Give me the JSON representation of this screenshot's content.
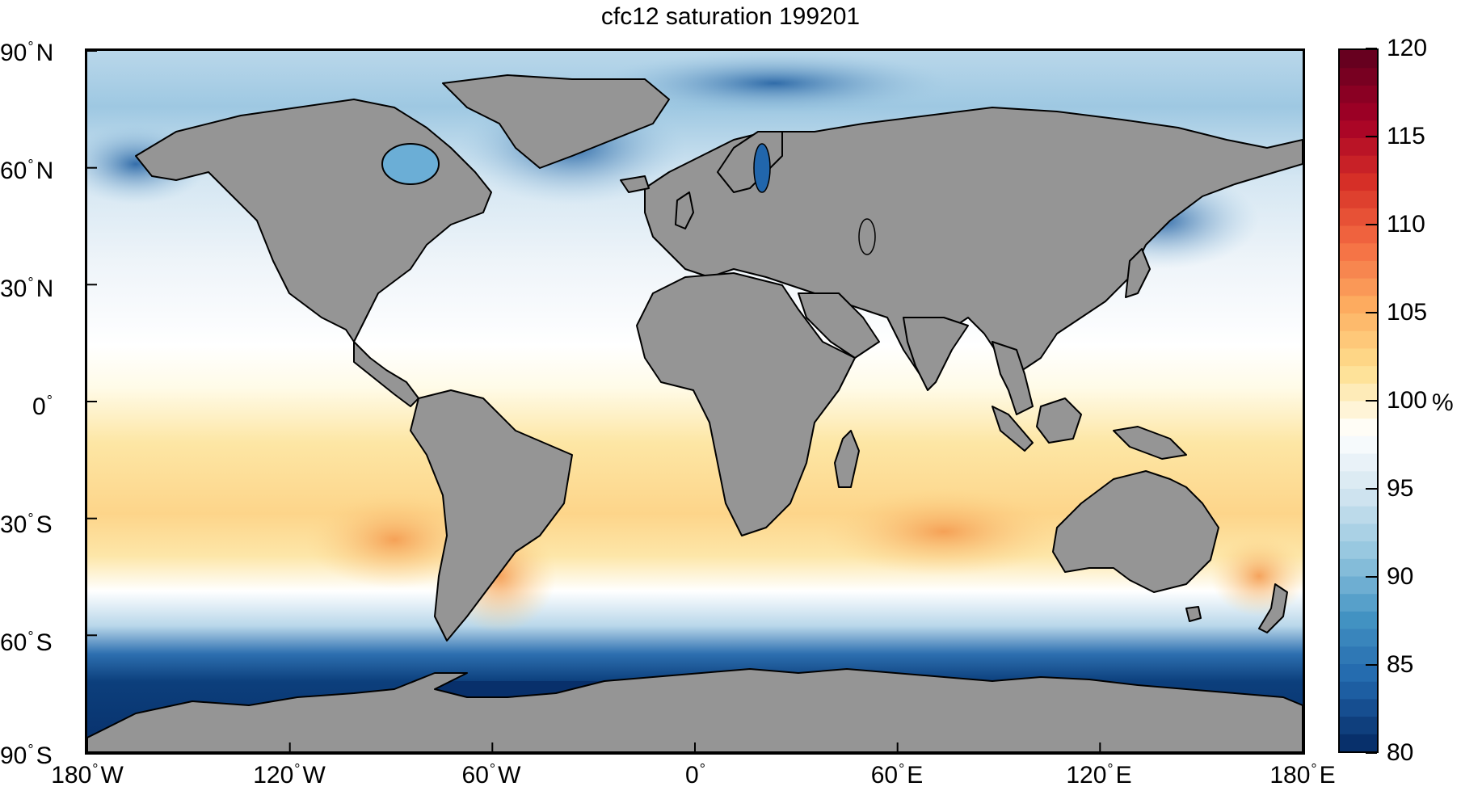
{
  "title": "cfc12 saturation 199201",
  "y_ticks": [
    "90",
    "60",
    "30",
    "0",
    "30",
    "60",
    "90"
  ],
  "y_hemis": [
    "N",
    "N",
    "N",
    "",
    "S",
    "S",
    "S"
  ],
  "x_ticks": [
    "180",
    "120",
    "60",
    "0",
    "60",
    "120",
    "180"
  ],
  "x_hemis": [
    "W",
    "W",
    "W",
    "",
    "E",
    "E",
    "E"
  ],
  "degree_symbol": "°",
  "colorbar": {
    "ticks": [
      "120",
      "115",
      "110",
      "105",
      "100",
      "95",
      "90",
      "85",
      "80"
    ],
    "unit": "%",
    "min": 80,
    "max": 120
  },
  "colors": {
    "land": "#959595",
    "coastline": "#000000",
    "scale": [
      "#08306b",
      "#2166ac",
      "#4393c3",
      "#92c5de",
      "#d1e5f0",
      "#ffffff",
      "#fee090",
      "#fdae61",
      "#f46d43",
      "#d73027",
      "#a50026",
      "#67001f"
    ]
  },
  "features": [
    "ocean-field",
    "continents",
    "coastlines"
  ]
}
